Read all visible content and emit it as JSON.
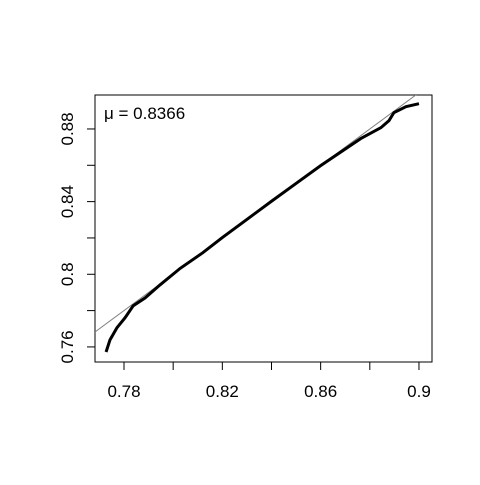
{
  "chart_data": {
    "type": "line",
    "annotation": "μ = 0.8366",
    "x": [
      0.7727,
      0.7743,
      0.7771,
      0.7804,
      0.7837,
      0.7886,
      0.7947,
      0.8029,
      0.812,
      0.82,
      0.83,
      0.84,
      0.85,
      0.86,
      0.8763,
      0.8845,
      0.8878,
      0.8898,
      0.8947,
      0.9
    ],
    "series": [
      {
        "color": "#000000",
        "values": [
          0.7572,
          0.7639,
          0.7705,
          0.776,
          0.7826,
          0.787,
          0.7942,
          0.8033,
          0.8118,
          0.8202,
          0.8302,
          0.8402,
          0.85,
          0.8598,
          0.8747,
          0.8807,
          0.8846,
          0.889,
          0.8923,
          0.8939
        ]
      }
    ],
    "reference_line": {
      "slope": 1,
      "intercept": 0,
      "color": "#808080"
    },
    "xlim": [
      0.7682,
      0.9053
    ],
    "ylim": [
      0.7517,
      0.8987
    ],
    "xticks": [
      0.78,
      0.82,
      0.86,
      0.9
    ],
    "xticks_minor": [
      0.8,
      0.84,
      0.88
    ],
    "yticks": [
      0.76,
      0.8,
      0.84,
      0.88
    ],
    "yticks_minor": [
      0.78,
      0.82,
      0.86
    ]
  }
}
